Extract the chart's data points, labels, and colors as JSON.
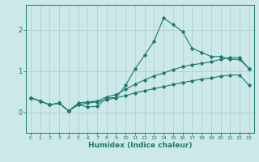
{
  "xlabel": "Humidex (Indice chaleur)",
  "x": [
    0,
    1,
    2,
    3,
    4,
    5,
    6,
    7,
    8,
    9,
    10,
    11,
    12,
    13,
    14,
    15,
    16,
    17,
    18,
    19,
    20,
    21,
    22,
    23
  ],
  "line1": [
    0.35,
    0.27,
    0.18,
    0.22,
    0.03,
    0.18,
    0.13,
    0.14,
    0.35,
    0.35,
    0.65,
    1.05,
    1.38,
    1.72,
    2.28,
    2.12,
    1.95,
    1.55,
    1.45,
    1.35,
    1.35,
    1.28,
    1.28,
    1.05
  ],
  "line2": [
    0.35,
    0.27,
    0.18,
    0.22,
    0.03,
    0.22,
    0.25,
    0.27,
    0.37,
    0.43,
    0.55,
    0.68,
    0.78,
    0.88,
    0.95,
    1.03,
    1.1,
    1.15,
    1.18,
    1.22,
    1.28,
    1.32,
    1.32,
    1.05
  ],
  "line3": [
    0.35,
    0.27,
    0.18,
    0.22,
    0.03,
    0.18,
    0.22,
    0.25,
    0.3,
    0.35,
    0.4,
    0.47,
    0.52,
    0.57,
    0.62,
    0.67,
    0.72,
    0.76,
    0.8,
    0.83,
    0.87,
    0.9,
    0.9,
    0.65
  ],
  "line_color": "#1a7a6e",
  "bg_color": "#cce8e8",
  "grid_color": "#aacccc",
  "yticks": [
    0,
    1,
    2
  ],
  "xticks": [
    0,
    1,
    2,
    3,
    4,
    5,
    6,
    7,
    8,
    9,
    10,
    11,
    12,
    13,
    14,
    15,
    16,
    17,
    18,
    19,
    20,
    21,
    22,
    23
  ],
  "ylim": [
    -0.5,
    2.6
  ],
  "xlim": [
    -0.5,
    23.5
  ]
}
